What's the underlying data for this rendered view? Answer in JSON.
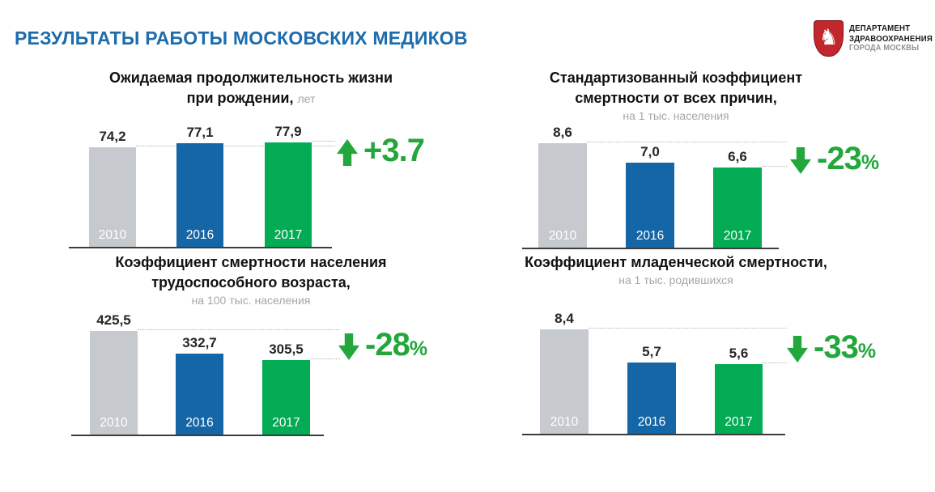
{
  "header": {
    "title": "РЕЗУЛЬТАТЫ РАБОТЫ МОСКОВСКИХ МЕДИКОВ"
  },
  "logo": {
    "emblem": "moscow-coat-of-arms-st-george",
    "shield_color": "#c1272d",
    "line1": "ДЕПАРТАМЕНТ",
    "line2": "ЗДРАВООХРАНЕНИЯ",
    "line3": "ГОРОДА МОСКВЫ"
  },
  "colors": {
    "title_blue": "#1e6cab",
    "bar_gray": "#c6c9cd",
    "bar_blue": "#1566a6",
    "bar_green": "#02ab54",
    "accent_green": "#23a73c",
    "muted_text": "#a6a6a6"
  },
  "chart_data": [
    {
      "type": "bar",
      "title_lines": [
        "Ожидаемая продолжительность жизни",
        "при рождении,"
      ],
      "unit_inline": "лет",
      "categories": [
        "2010",
        "2016",
        "2017"
      ],
      "values": [
        74.2,
        77.1,
        77.9
      ],
      "value_labels": [
        "74,2",
        "77,1",
        "77,9"
      ],
      "bar_colors": [
        "#c6c9cd",
        "#1566a6",
        "#02ab54"
      ],
      "change": {
        "direction": "up",
        "value": "+3.7",
        "suffix": ""
      },
      "legend": "none",
      "grid": "off"
    },
    {
      "type": "bar",
      "title_lines": [
        "Стандартизованный коэффициент",
        "смертности от всех причин,"
      ],
      "subtitle": "на 1 тыс. населения",
      "categories": [
        "2010",
        "2016",
        "2017"
      ],
      "values": [
        8.6,
        7.0,
        6.6
      ],
      "value_labels": [
        "8,6",
        "7,0",
        "6,6"
      ],
      "bar_colors": [
        "#c6c9cd",
        "#1566a6",
        "#02ab54"
      ],
      "change": {
        "direction": "down",
        "value": "-23",
        "suffix": "%"
      },
      "legend": "none",
      "grid": "off"
    },
    {
      "type": "bar",
      "title_lines": [
        "Коэффициент смертности населения",
        "трудоспособного возраста,"
      ],
      "subtitle": "на 100 тыс. населения",
      "categories": [
        "2010",
        "2016",
        "2017"
      ],
      "values": [
        425.5,
        332.7,
        305.5
      ],
      "value_labels": [
        "425,5",
        "332,7",
        "305,5"
      ],
      "bar_colors": [
        "#c6c9cd",
        "#1566a6",
        "#02ab54"
      ],
      "change": {
        "direction": "down",
        "value": "-28",
        "suffix": "%"
      },
      "legend": "none",
      "grid": "off"
    },
    {
      "type": "bar",
      "title_lines": [
        "Коэффициент младенческой смертности,"
      ],
      "subtitle": "на 1 тыс. родившихся",
      "categories": [
        "2010",
        "2016",
        "2017"
      ],
      "values": [
        8.4,
        5.7,
        5.6
      ],
      "value_labels": [
        "8,4",
        "5,7",
        "5,6"
      ],
      "bar_colors": [
        "#c6c9cd",
        "#1566a6",
        "#02ab54"
      ],
      "change": {
        "direction": "down",
        "value": "-33",
        "suffix": "%"
      },
      "legend": "none",
      "grid": "off"
    }
  ]
}
